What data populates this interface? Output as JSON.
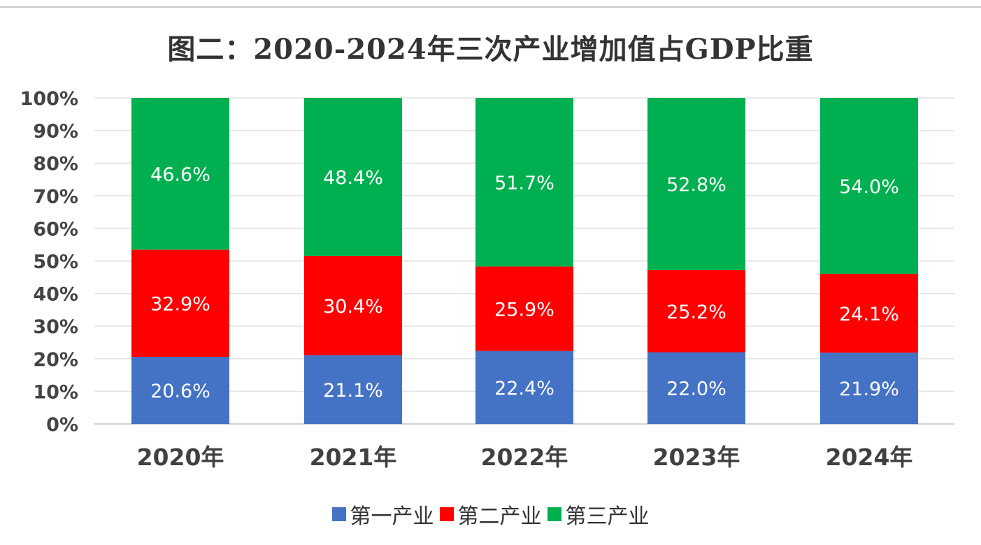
{
  "chart_data": {
    "type": "bar",
    "stacked": true,
    "title": "图二：2020-2024年三次产业增加值占GDP比重",
    "categories": [
      "2020年",
      "2021年",
      "2022年",
      "2023年",
      "2024年"
    ],
    "series": [
      {
        "name": "第一产业",
        "color": "#4472c4",
        "values": [
          20.6,
          21.1,
          22.4,
          22.0,
          21.9
        ],
        "labels": [
          "20.6%",
          "21.1%",
          "22.4%",
          "22.0%",
          "21.9%"
        ]
      },
      {
        "name": "第二产业",
        "color": "#ff0000",
        "values": [
          32.9,
          30.4,
          25.9,
          25.2,
          24.1
        ],
        "labels": [
          "32.9%",
          "30.4%",
          "25.9%",
          "25.2%",
          "24.1%"
        ]
      },
      {
        "name": "第三产业",
        "color": "#00b050",
        "values": [
          46.6,
          48.4,
          51.7,
          52.8,
          54.0
        ],
        "labels": [
          "46.6%",
          "48.4%",
          "51.7%",
          "52.8%",
          "54.0%"
        ]
      }
    ],
    "yticks": [
      "0%",
      "10%",
      "20%",
      "30%",
      "40%",
      "50%",
      "60%",
      "70%",
      "80%",
      "90%",
      "100%"
    ],
    "ylim": [
      0,
      100
    ],
    "grid": true,
    "legend_position": "bottom"
  }
}
